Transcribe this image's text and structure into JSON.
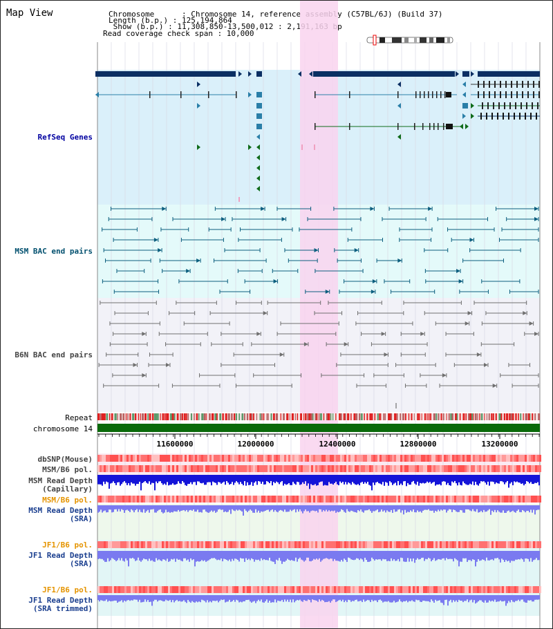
{
  "header": {
    "title": "Map View",
    "chromosome_label": "Chromosome      : Chromosome 14, reference assembly (C57BL/6J) (Build 37)",
    "length_label": "Length (b.p.) : 125,194,864",
    "show_label": " Show (b.p.) : 11,308,850-13,500,012 : 2,191,163 bp",
    "coverage_label": "Read coverage check span : 10,000"
  },
  "tracks": {
    "refseq": "RefSeq Genes",
    "msm_bac": "MSM BAC end pairs",
    "b6n_bac": "B6N BAC end pairs",
    "repeat": "Repeat",
    "chromosome": "chromosome 14",
    "dbsnp": "dbSNP(Mouse)",
    "msm_b6_pol": "MSM/B6 pol.",
    "msm_depth_cap_1": "MSM Read Depth",
    "msm_depth_cap_2": "(Capillary)",
    "msm_b6_pol_2": "MSM/B6 pol.",
    "msm_depth_sra_1": "MSM Read Depth",
    "msm_depth_sra_2": "(SRA)",
    "jf1_b6_pol": "JF1/B6 pol.",
    "jf1_depth_sra_1": "JF1 Read Depth",
    "jf1_depth_sra_2": "(SRA)",
    "jf1_b6_pol_2": "JF1/B6 pol.",
    "jf1_depth_trim_1": "JF1 Read Depth",
    "jf1_depth_trim_2": "(SRA trimmed)"
  },
  "axis": {
    "ticks": [
      "11600000",
      "12000000",
      "12400000",
      "12800000",
      "13200000"
    ]
  },
  "colors": {
    "refseq_bg": "#daf0fa",
    "msm_bg": "#e4fafa",
    "b6n_bg": "#f2f2f8",
    "highlight": "#f9d4ee",
    "gene_dark": "#0b2f63",
    "gene_line": "#2a7fa8",
    "gene_green": "#0f6b1a",
    "msm_line": "#0d5f7f",
    "b6n_line": "#707070",
    "chromosome": "#0a6a0a",
    "depth_blue": "#1414d8",
    "depth_lavender": "#7a7af0",
    "snp_red": "#ff7b7b"
  }
}
